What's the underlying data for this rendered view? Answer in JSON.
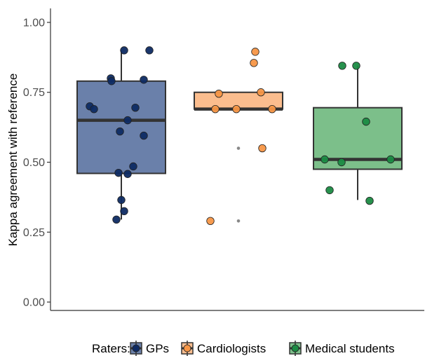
{
  "chart_data": {
    "type": "boxplot",
    "xlabel": "",
    "ylabel": "Kappa agreement with reference",
    "ylim": [
      -0.03,
      1.05
    ],
    "yticks": [
      0.0,
      0.25,
      0.5,
      0.75,
      1.0
    ],
    "ytick_labels": [
      "0.00",
      "0.25",
      "0.50",
      "0.75",
      "1.00"
    ],
    "grid": false,
    "legend": {
      "position": "bottom",
      "title": "Raters:"
    },
    "series": [
      {
        "name": "GPs",
        "fill": "#6a80aa",
        "point_color": "#0e2b63",
        "box": {
          "min": 0.295,
          "q1": 0.46,
          "median": 0.65,
          "q3": 0.79,
          "max": 0.9
        },
        "outliers": [],
        "points": [
          {
            "jitter": -0.45,
            "y": 0.7
          },
          {
            "jitter": -0.39,
            "y": 0.69
          },
          {
            "jitter": -0.15,
            "y": 0.8
          },
          {
            "jitter": -0.14,
            "y": 0.79
          },
          {
            "jitter": -0.02,
            "y": 0.61
          },
          {
            "jitter": 0.04,
            "y": 0.9
          },
          {
            "jitter": 0.4,
            "y": 0.9
          },
          {
            "jitter": 0.32,
            "y": 0.795
          },
          {
            "jitter": 0.2,
            "y": 0.695
          },
          {
            "jitter": 0.09,
            "y": 0.65
          },
          {
            "jitter": 0.32,
            "y": 0.595
          },
          {
            "jitter": 0.17,
            "y": 0.485
          },
          {
            "jitter": -0.04,
            "y": 0.462
          },
          {
            "jitter": 0.09,
            "y": 0.458
          },
          {
            "jitter": 0.0,
            "y": 0.365
          },
          {
            "jitter": 0.04,
            "y": 0.325
          },
          {
            "jitter": -0.07,
            "y": 0.295
          }
        ]
      },
      {
        "name": "Cardiologists",
        "fill": "#fbbd8e",
        "point_color": "#f79646",
        "box": {
          "min": 0.69,
          "q1": 0.69,
          "median": 0.69,
          "q3": 0.75,
          "max": 0.75
        },
        "outliers": [
          0.55,
          0.29
        ],
        "points": [
          {
            "jitter": 0.24,
            "y": 0.895
          },
          {
            "jitter": 0.22,
            "y": 0.855
          },
          {
            "jitter": -0.28,
            "y": 0.745
          },
          {
            "jitter": 0.32,
            "y": 0.75
          },
          {
            "jitter": -0.33,
            "y": 0.69
          },
          {
            "jitter": -0.03,
            "y": 0.69
          },
          {
            "jitter": 0.48,
            "y": 0.69
          },
          {
            "jitter": 0.34,
            "y": 0.55
          },
          {
            "jitter": -0.4,
            "y": 0.29
          }
        ]
      },
      {
        "name": "Medical students",
        "fill": "#7cbf8a",
        "point_color": "#1b8b43",
        "box": {
          "min": 0.365,
          "q1": 0.475,
          "median": 0.51,
          "q3": 0.695,
          "max": 0.845
        },
        "outliers": [],
        "points": [
          {
            "jitter": -0.22,
            "y": 0.845
          },
          {
            "jitter": -0.02,
            "y": 0.845
          },
          {
            "jitter": 0.12,
            "y": 0.645
          },
          {
            "jitter": 0.47,
            "y": 0.51
          },
          {
            "jitter": -0.47,
            "y": 0.51
          },
          {
            "jitter": -0.23,
            "y": 0.5
          },
          {
            "jitter": -0.4,
            "y": 0.4
          },
          {
            "jitter": 0.17,
            "y": 0.362
          }
        ]
      }
    ]
  }
}
